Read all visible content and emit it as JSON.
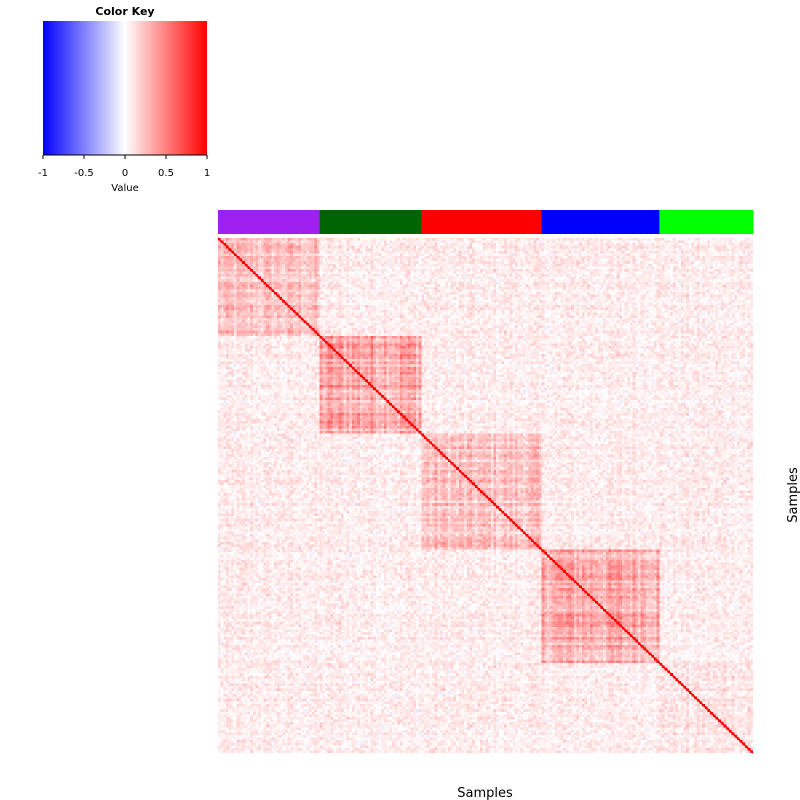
{
  "chart_data": {
    "type": "heatmap",
    "xlabel": "Samples",
    "ylabel": "Samples",
    "diagonal_value": 1,
    "color_key": {
      "title": "Color Key",
      "xlabel": "Value",
      "range": [
        -1,
        1
      ],
      "ticks": [
        -1,
        -0.5,
        0,
        0.5,
        1
      ],
      "tick_labels": [
        "-1",
        "-0.5",
        "0",
        "0.5",
        "1"
      ],
      "colors": {
        "low": "#0000ff",
        "mid": "#ffffff",
        "high": "#ff0000"
      }
    },
    "sample_groups": [
      {
        "color": "#a020f0",
        "size": 38
      },
      {
        "color": "#006400",
        "size": 38
      },
      {
        "color": "#ff0000",
        "size": 45
      },
      {
        "color": "#0000ff",
        "size": 44
      },
      {
        "color": "#00ff00",
        "size": 35
      }
    ],
    "within_group_mean_correlation": [
      0.22,
      0.35,
      0.22,
      0.33,
      0.1
    ],
    "between_group_mean_correlation": 0.07
  }
}
